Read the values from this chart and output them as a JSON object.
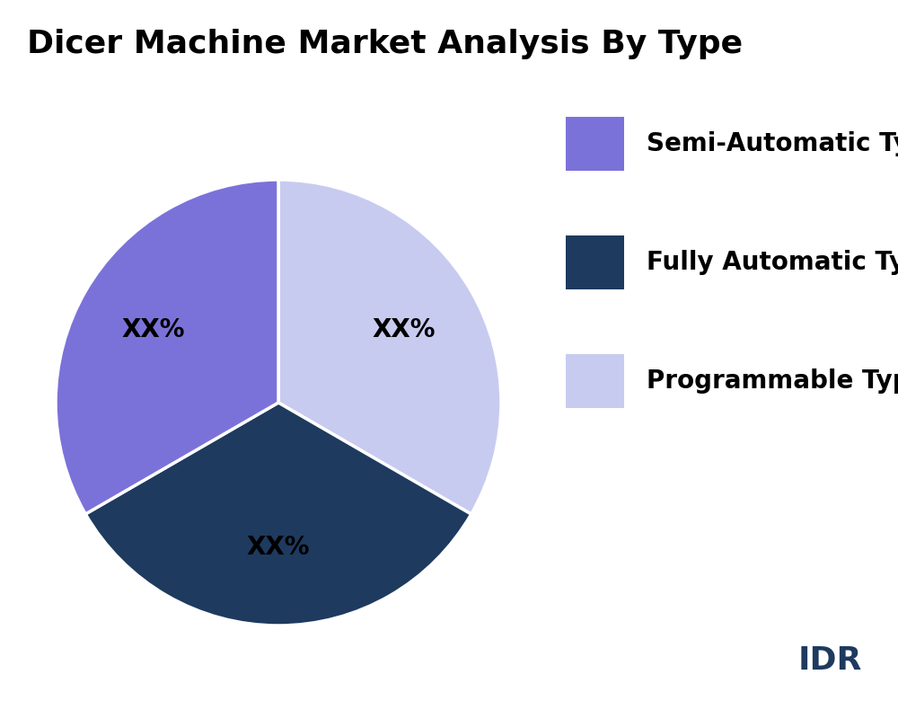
{
  "title": "Dicer Machine Market Analysis By Type",
  "slices": [
    {
      "label": "Semi-Automatic Type",
      "value": 33.33,
      "color": "#7B72D9"
    },
    {
      "label": "Fully Automatic Type",
      "value": 33.33,
      "color": "#1E3A5F"
    },
    {
      "label": "Programmable Type",
      "value": 33.34,
      "color": "#C8CBF0"
    }
  ],
  "autopct_text": "XX%",
  "title_fontsize": 26,
  "legend_fontsize": 20,
  "autopct_fontsize": 20,
  "background_color": "#ffffff",
  "text_color": "#000000",
  "idr_text": "IDR",
  "idr_color": "#1E3A5F",
  "idr_fontsize": 26,
  "startangle": 90
}
